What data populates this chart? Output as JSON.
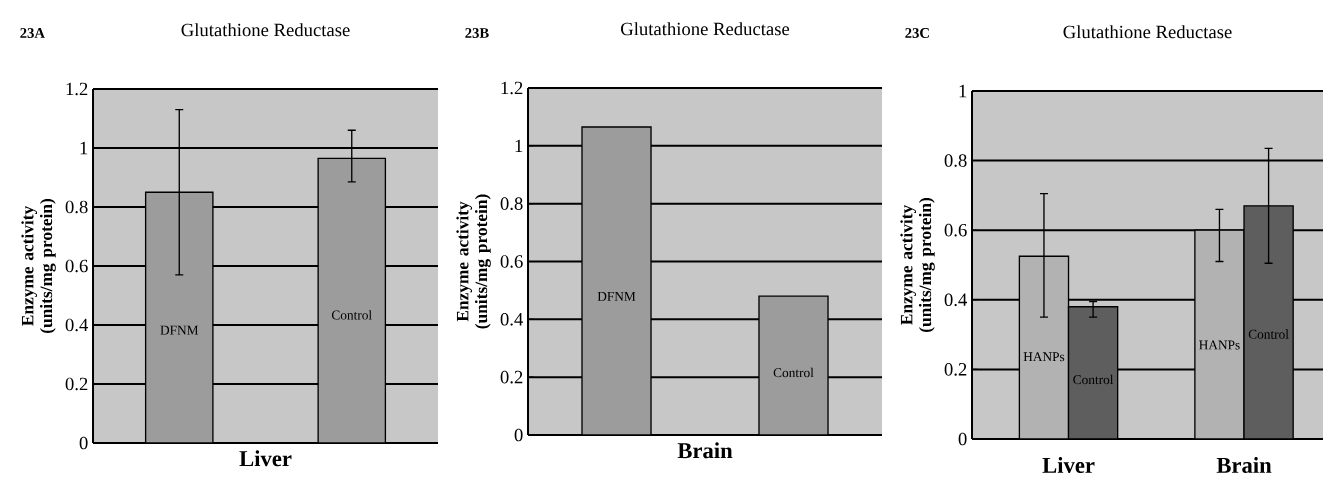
{
  "chart_data": [
    {
      "type": "bar",
      "title": "Glutathione Reductase",
      "annotations": [
        "23A"
      ],
      "ylabel": "Enzyme activity (units/mg protein)",
      "xlabel": "Liver",
      "categories": [
        "DFNM",
        "Control"
      ],
      "values": [
        0.85,
        0.965
      ],
      "color": "#9c9c9c",
      "errors": [
        [
          0.57,
          1.13
        ],
        [
          0.885,
          1.06
        ]
      ],
      "ylim": [
        0,
        1.2
      ],
      "yticks": [
        0,
        0.2,
        0.4,
        0.6,
        0.8,
        1,
        1.2
      ],
      "grid": "y"
    },
    {
      "type": "bar",
      "title": "Glutathione Reductase",
      "annotations": [
        "23B"
      ],
      "ylabel": "Enzyme activity (units/mg protein)",
      "xlabel": "Brain",
      "categories": [
        "DFNM",
        "Control"
      ],
      "values": [
        1.065,
        0.48
      ],
      "color": "#9c9c9c",
      "ylim": [
        0,
        1.2
      ],
      "yticks": [
        0,
        0.2,
        0.4,
        0.6,
        0.8,
        1,
        1.2
      ],
      "grid": "y"
    },
    {
      "type": "bar",
      "title": "Glutathione Reductase",
      "annotations": [
        "23C"
      ],
      "ylabel": "Enzyme activity (units/mg protein)",
      "categories": [
        "Liver",
        "Brain"
      ],
      "series": [
        {
          "name": "HANPs",
          "color": "#b2b2b2",
          "values": [
            0.525,
            0.6
          ],
          "errors": [
            [
              0.35,
              0.705
            ],
            [
              0.51,
              0.66
            ]
          ]
        },
        {
          "name": "Control",
          "color": "#5e5e5e",
          "values": [
            0.38,
            0.67
          ],
          "errors": [
            [
              0.35,
              0.395
            ],
            [
              0.505,
              0.835
            ]
          ]
        }
      ],
      "ylim": [
        0,
        1
      ],
      "yticks": [
        0,
        0.2,
        0.4,
        0.6,
        0.8,
        1
      ],
      "grid": "y"
    }
  ]
}
